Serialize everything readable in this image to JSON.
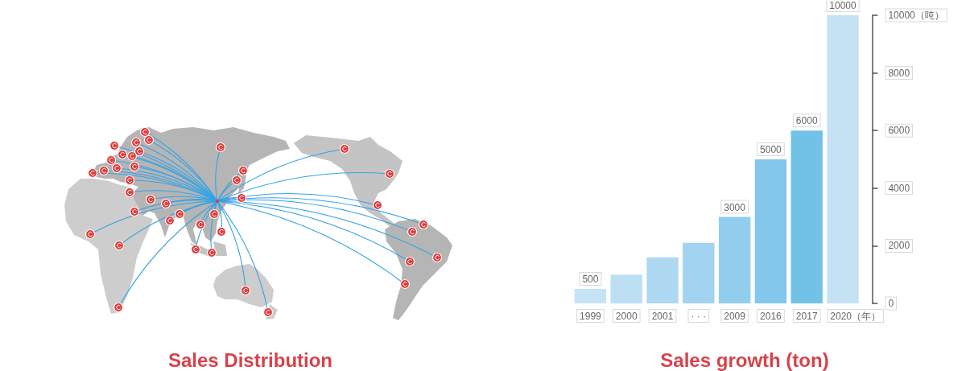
{
  "chart_data": [
    {
      "type": "other",
      "title": "Sales Distribution"
    },
    {
      "type": "bar",
      "title": "Sales growth (ton)",
      "categories": [
        "1999",
        "2000",
        "2001",
        "· · ·",
        "2009",
        "2016",
        "2017",
        "2020（年）"
      ],
      "values": [
        500,
        1000,
        1600,
        2100,
        3000,
        5000,
        6000,
        10000
      ],
      "colors": [
        "#c6e3f5",
        "#bcdff4",
        "#afd9f2",
        "#a2d3f0",
        "#92cdee",
        "#83c8ec",
        "#72c2e8",
        "#c5e2f4"
      ],
      "value_labels": [
        "500",
        null,
        null,
        null,
        "3000",
        "5000",
        "6000",
        "10000"
      ],
      "ylim": [
        0,
        10000
      ],
      "yticks": [
        0,
        2000,
        4000,
        6000,
        8000,
        {
          "value": 10000,
          "label": "10000（吨）"
        }
      ]
    }
  ]
}
